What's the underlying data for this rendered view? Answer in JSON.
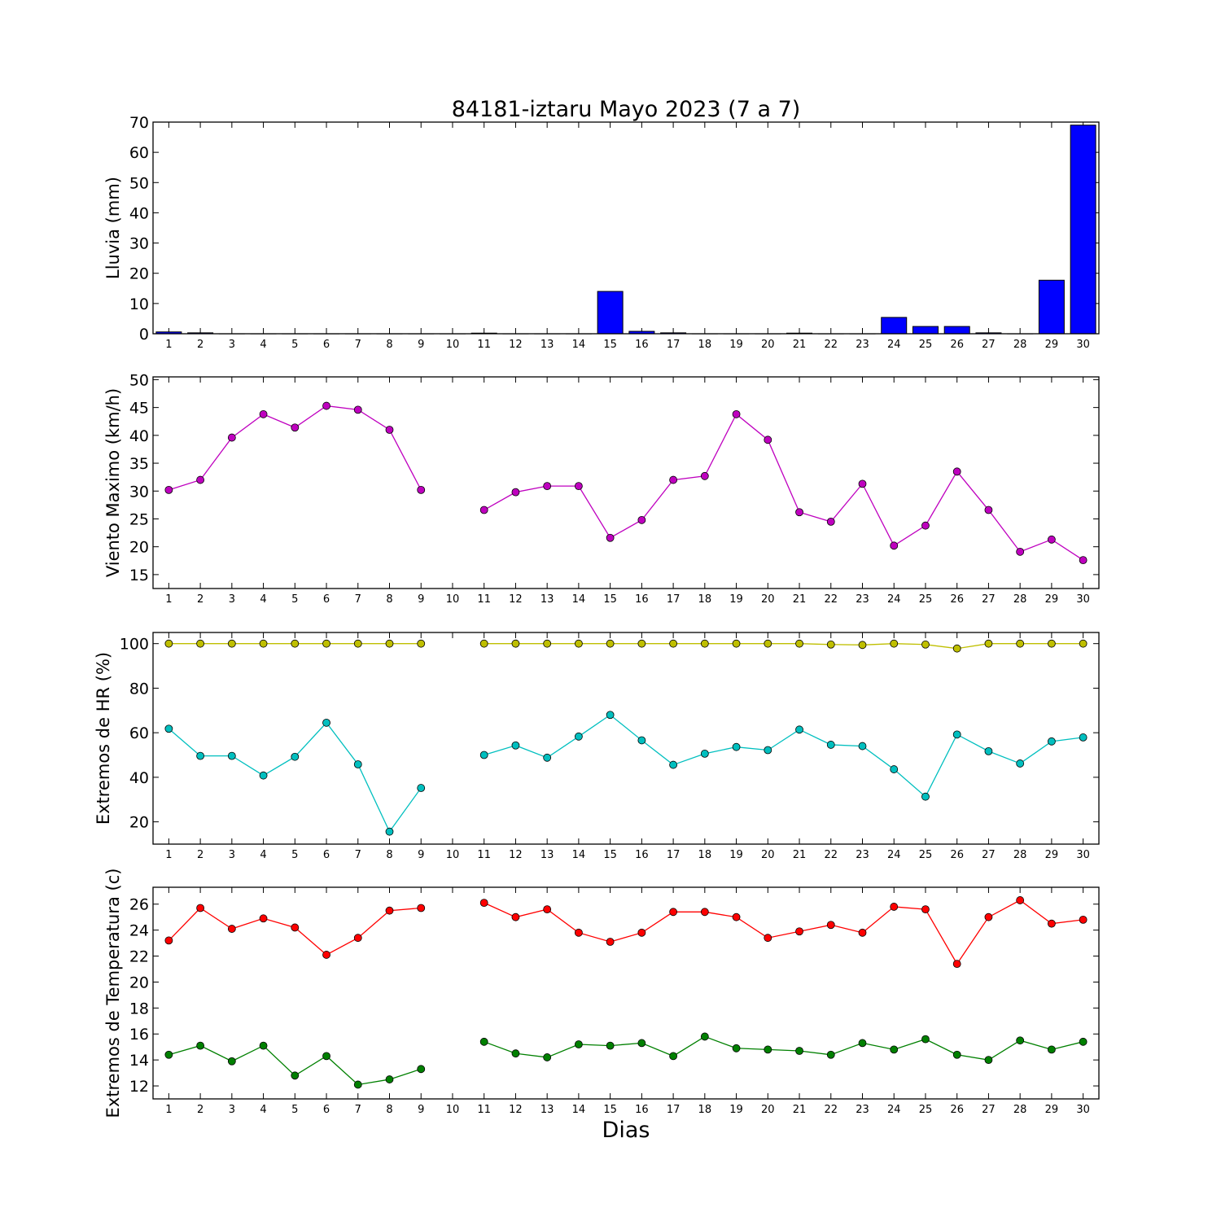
{
  "title": "84181-iztaru Mayo 2023  (7 a 7)",
  "xlabel": "Dias",
  "days": [
    1,
    2,
    3,
    4,
    5,
    6,
    7,
    8,
    9,
    10,
    11,
    12,
    13,
    14,
    15,
    16,
    17,
    18,
    19,
    20,
    21,
    22,
    23,
    24,
    25,
    26,
    27,
    28,
    29,
    30
  ],
  "chart_data": [
    {
      "type": "bar",
      "ylabel": "Lluvia (mm)",
      "ylim": [
        0,
        70
      ],
      "yticks": [
        0,
        10,
        20,
        30,
        40,
        50,
        60,
        70
      ],
      "color": "#0000ff",
      "series": [
        {
          "values": [
            0.6,
            0.3,
            0,
            0,
            0,
            0,
            0,
            0,
            0,
            0,
            0.2,
            0,
            0,
            0,
            14.0,
            0.8,
            0.3,
            0,
            0,
            0,
            0.2,
            0,
            0,
            5.4,
            2.4,
            2.4,
            0.3,
            0,
            17.7,
            69.0
          ]
        }
      ]
    },
    {
      "type": "line",
      "ylabel": "Viento Maximo (km/h)",
      "ylim": [
        12.5,
        50.5
      ],
      "yticks": [
        15,
        20,
        25,
        30,
        35,
        40,
        45,
        50
      ],
      "series": [
        {
          "color": "#bf00bf",
          "values": [
            30.2,
            32.0,
            39.6,
            43.8,
            41.4,
            45.3,
            44.6,
            41.0,
            30.2,
            null,
            26.6,
            29.8,
            30.9,
            30.9,
            21.6,
            24.8,
            32.0,
            32.7,
            43.8,
            39.2,
            26.2,
            24.5,
            31.3,
            20.2,
            23.8,
            33.5,
            26.6,
            19.1,
            21.3,
            17.6
          ]
        }
      ]
    },
    {
      "type": "line",
      "ylabel": "Extremos de HR (%)",
      "ylim": [
        10,
        105
      ],
      "yticks": [
        20,
        40,
        60,
        80,
        100
      ],
      "series": [
        {
          "color": "#bfbf00",
          "values": [
            100,
            100,
            100,
            100,
            100,
            100,
            100,
            100,
            100,
            null,
            100,
            100,
            100,
            100,
            100,
            100,
            100,
            100,
            100,
            100,
            100,
            99.6,
            99.4,
            100,
            99.6,
            97.8,
            100,
            100,
            100,
            100
          ]
        },
        {
          "color": "#00bfbf",
          "values": [
            61.8,
            49.6,
            49.6,
            40.8,
            49.2,
            64.5,
            45.8,
            15.6,
            35.2,
            null,
            50.0,
            54.3,
            48.8,
            58.3,
            68.0,
            56.6,
            45.6,
            50.6,
            53.6,
            52.2,
            61.4,
            54.6,
            54.0,
            43.6,
            31.3,
            59.2,
            51.7,
            46.2,
            56.1,
            57.9
          ]
        }
      ]
    },
    {
      "type": "line",
      "ylabel": "Extremos de Temperatura (c)",
      "ylim": [
        11,
        27.3
      ],
      "yticks": [
        12,
        14,
        16,
        18,
        20,
        22,
        24,
        26
      ],
      "series": [
        {
          "color": "#ff0000",
          "values": [
            23.2,
            25.7,
            24.1,
            24.9,
            24.2,
            22.1,
            23.4,
            25.5,
            25.7,
            null,
            26.1,
            25.0,
            25.6,
            23.8,
            23.1,
            23.8,
            25.4,
            25.4,
            25.0,
            23.4,
            23.9,
            24.4,
            23.8,
            25.8,
            25.6,
            21.4,
            25.0,
            26.3,
            24.5,
            24.8
          ]
        },
        {
          "color": "#008000",
          "values": [
            14.4,
            15.1,
            13.9,
            15.1,
            12.8,
            14.3,
            12.1,
            12.5,
            13.3,
            null,
            15.4,
            14.5,
            14.2,
            15.2,
            15.1,
            15.3,
            14.3,
            15.8,
            14.9,
            14.8,
            14.7,
            14.4,
            15.3,
            14.8,
            15.6,
            14.4,
            14.0,
            15.5,
            14.8,
            15.4
          ]
        }
      ]
    }
  ]
}
